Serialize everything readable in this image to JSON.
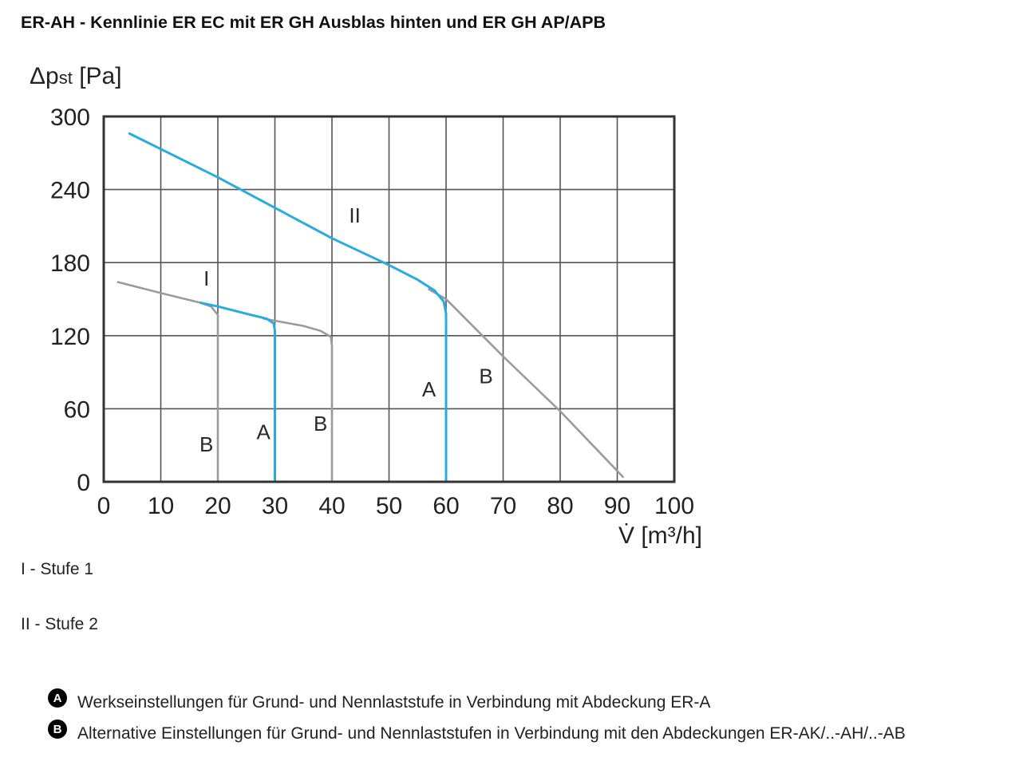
{
  "page": {
    "title": "ER-AH - Kennlinie ER EC mit ER GH Ausblas hinten und ER GH AP/APB"
  },
  "chart_data": {
    "type": "line",
    "ylabel_main": "Δp",
    "ylabel_sub": "st",
    "ylabel_unit": " [Pa]",
    "xlabel": "V̇ [m³/h]",
    "xlim": [
      0,
      100
    ],
    "ylim": [
      0,
      300
    ],
    "x_ticks": [
      "0",
      "10",
      "20",
      "30",
      "40",
      "50",
      "60",
      "70",
      "80",
      "90",
      "100"
    ],
    "y_ticks": [
      "0",
      "60",
      "120",
      "180",
      "240",
      "300"
    ],
    "grid": true,
    "colors": {
      "A": "#29ABE2",
      "B": "#9B9B9B",
      "frame": "#333333",
      "grid": "#555555"
    },
    "series": [
      {
        "name": "I",
        "variant": "B",
        "color": "#9B9B9B",
        "x": [
          2.5,
          10,
          17,
          18.8,
          20,
          20
        ],
        "y": [
          164,
          155,
          147,
          144,
          137,
          0
        ]
      },
      {
        "name": "II",
        "variant": "B",
        "color": "#9B9B9B",
        "x": [
          28,
          35,
          38,
          39.8,
          40,
          40
        ],
        "y": [
          134,
          128,
          124,
          119,
          112,
          0
        ]
      },
      {
        "name": "I",
        "variant": "A",
        "color": "#29ABE2",
        "x": [
          17,
          20,
          25,
          28.5,
          29.8,
          30,
          30
        ],
        "y": [
          147,
          144,
          138,
          134,
          130,
          124,
          0
        ]
      },
      {
        "name": "II",
        "variant": "A",
        "color": "#29ABE2",
        "x": [
          4.5,
          20,
          40,
          50,
          55,
          58,
          59.6,
          60,
          60
        ],
        "y": [
          286,
          250,
          200,
          178,
          166,
          157,
          148,
          138,
          0
        ]
      },
      {
        "name": "II",
        "variant": "B",
        "color": "#9B9B9B",
        "x": [
          57,
          60,
          70,
          80,
          90,
          91
        ],
        "y": [
          158,
          150,
          103,
          58,
          9,
          4
        ]
      }
    ],
    "annotations": [
      {
        "text": "II",
        "x": 44,
        "y": 213
      },
      {
        "text": "I",
        "x": 18,
        "y": 161
      },
      {
        "text": "B",
        "x": 18,
        "y": 25
      },
      {
        "text": "A",
        "x": 28,
        "y": 35
      },
      {
        "text": "B",
        "x": 38,
        "y": 42
      },
      {
        "text": "A",
        "x": 57,
        "y": 70
      },
      {
        "text": "B",
        "x": 67,
        "y": 81
      }
    ]
  },
  "legend": {
    "line1": "I - Stufe 1",
    "line2": "II - Stufe 2"
  },
  "notes": [
    {
      "badge": "A",
      "text": "Werkseinstellungen für Grund- und Nennlaststufe in Verbindung mit Abdeckung ER-A"
    },
    {
      "badge": "B",
      "text": "Alternative Einstellungen für Grund- und Nennlaststufen in Verbindung mit den Abdeckungen ER-AK/..-AH/..-AB"
    }
  ]
}
